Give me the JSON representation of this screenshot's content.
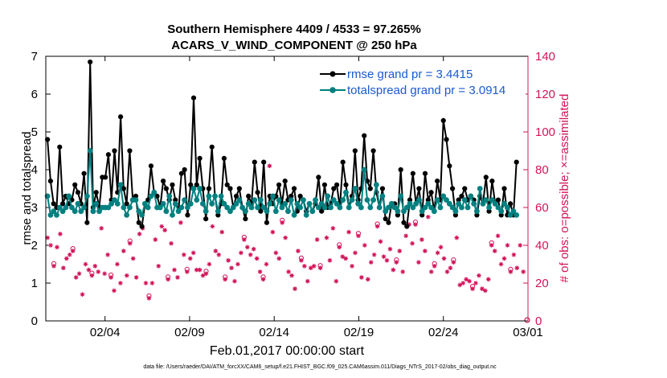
{
  "chart_data": {
    "type": "line",
    "title_line1": "Southern Hemisphere 4409 / 4533 = 97.265%",
    "title_line2": "ACARS_V_WIND_COMPONENT @ 250 hPa",
    "ylabel_left": "rmse and totalspread",
    "ylabel_right": "# of obs: o=possible; ×=assimilated",
    "xlabel": "Feb.01,2017 00:00:00 start",
    "footnote": "data file: /Users/raeder/DAI/ATM_forcXX/CAM6_setup/f.e21.FHIST_BGC.f09_025.CAM6assim.011/Diags_NTrS_2017-02/obs_diag_output.nc",
    "xlim": [
      0.0,
      28.5
    ],
    "ylim_left": [
      0,
      7
    ],
    "ylim_right": [
      0,
      140
    ],
    "yticks_left": [
      "0",
      "1",
      "2",
      "3",
      "4",
      "5",
      "6",
      "7"
    ],
    "yticks_right": [
      "0",
      "20",
      "40",
      "60",
      "80",
      "100",
      "120",
      "140"
    ],
    "xticks": [
      {
        "x": 3.5,
        "label": "02/04"
      },
      {
        "x": 8.5,
        "label": "02/09"
      },
      {
        "x": 13.5,
        "label": "02/14"
      },
      {
        "x": 18.5,
        "label": "02/19"
      },
      {
        "x": 23.5,
        "label": "02/24"
      },
      {
        "x": 28.5,
        "label": "03/01"
      }
    ],
    "colors": {
      "rmse": "#000000",
      "spread": "#008080",
      "obs": "#d1145a",
      "legend_text": "#1a5ad0"
    },
    "series": [
      {
        "name": "rmse grand pr = 3.4415",
        "values": [
          4.8,
          3.7,
          3.1,
          3.0,
          4.6,
          3.1,
          3.3,
          3.1,
          3.2,
          3.6,
          3.4,
          3.1,
          3.9,
          2.6,
          6.85,
          3.0,
          3.4,
          3.0,
          3.8,
          3.8,
          4.4,
          3.2,
          4.5,
          3.4,
          5.4,
          3.5,
          3.1,
          4.5,
          3.2,
          3.3,
          2.6,
          2.5,
          3.1,
          3.2,
          4.1,
          3.4,
          3.3,
          3.0,
          3.7,
          3.5,
          3.2,
          3.6,
          3.2,
          2.9,
          3.9,
          4.0,
          2.8,
          3.6,
          5.9,
          3.6,
          4.3,
          3.5,
          2.7,
          3.5,
          4.6,
          3.3,
          2.8,
          3.1,
          4.3,
          3.6,
          3.5,
          3.0,
          3.3,
          3.5,
          3.0,
          2.7,
          3.3,
          3.1,
          4.2,
          3.4,
          2.9,
          4.2,
          2.6,
          3.3,
          3.1,
          3.3,
          3.6,
          3.1,
          3.7,
          3.2,
          3.3,
          3.5,
          2.9,
          3.3,
          3.2,
          2.9,
          3.1,
          2.9,
          3.1,
          3.8,
          2.9,
          3.6,
          3.0,
          3.1,
          3.5,
          3.6,
          3.0,
          4.2,
          3.6,
          3.0,
          3.3,
          4.5,
          3.2,
          3.5,
          4.9,
          3.7,
          3.5,
          4.5,
          3.4,
          3.0,
          3.5,
          2.7,
          2.6,
          3.1,
          3.1,
          2.8,
          4.0,
          2.6,
          2.5,
          3.2,
          3.9,
          3.1,
          3.5,
          2.8,
          3.9,
          3.2,
          3.4,
          2.9,
          3.7,
          3.2,
          5.3,
          4.8,
          4.1,
          3.5,
          2.8,
          3.2,
          3.3,
          3.5,
          3.2,
          3.3,
          3.2,
          2.8,
          3.3,
          3.1,
          3.8,
          2.9,
          3.7,
          3.1,
          3.2,
          2.8,
          3.5,
          2.8,
          3.1,
          2.8,
          4.2
        ]
      },
      {
        "name": "totalspread grand pr = 3.0914",
        "values": [
          3.3,
          2.8,
          2.9,
          2.8,
          3.0,
          2.9,
          3.0,
          3.3,
          3.0,
          2.9,
          3.1,
          2.9,
          3.0,
          3.3,
          4.5,
          2.9,
          3.1,
          2.9,
          3.0,
          3.0,
          3.0,
          3.1,
          3.2,
          3.1,
          3.6,
          3.0,
          2.8,
          3.0,
          3.2,
          3.2,
          2.9,
          2.8,
          3.1,
          3.0,
          3.3,
          3.4,
          3.0,
          3.0,
          3.1,
          2.9,
          3.3,
          2.8,
          3.1,
          2.9,
          3.0,
          3.2,
          3.0,
          3.1,
          3.5,
          3.2,
          3.5,
          3.1,
          2.9,
          3.3,
          3.1,
          3.3,
          2.9,
          3.3,
          3.1,
          3.0,
          2.9,
          3.0,
          3.1,
          3.2,
          3.0,
          2.9,
          3.1,
          3.0,
          3.2,
          3.0,
          3.2,
          3.0,
          2.9,
          3.1,
          3.3,
          2.9,
          3.2,
          3.0,
          3.1,
          2.9,
          3.2,
          2.8,
          3.1,
          3.0,
          3.2,
          2.8,
          3.1,
          2.9,
          3.2,
          3.0,
          3.1,
          3.0,
          3.3,
          3.0,
          3.2,
          3.1,
          3.0,
          3.2,
          3.4,
          3.0,
          3.2,
          3.5,
          3.1,
          3.0,
          4.0,
          3.2,
          3.0,
          3.2,
          3.6,
          3.0,
          3.3,
          2.9,
          3.0,
          3.1,
          3.0,
          2.9,
          3.3,
          2.9,
          3.0,
          3.1,
          3.0,
          3.1,
          3.2,
          2.9,
          3.0,
          3.1,
          3.0,
          2.9,
          3.2,
          3.0,
          3.3,
          3.2,
          3.1,
          3.0,
          2.9,
          3.1,
          3.0,
          3.2,
          3.0,
          3.3,
          3.1,
          2.9,
          3.5,
          3.1,
          3.2,
          3.0,
          3.2,
          3.1,
          3.0,
          2.9,
          3.1,
          3.0,
          2.8,
          2.9,
          2.8
        ]
      }
    ],
    "obs_possible": [
      44,
      40,
      29,
      39,
      46,
      28,
      33,
      35,
      37,
      23,
      25,
      14,
      30,
      27,
      24,
      29,
      26,
      49,
      25,
      35,
      23,
      16,
      30,
      20,
      37,
      24,
      41,
      33,
      23,
      46,
      49,
      20,
      12,
      20,
      43,
      29,
      50,
      48,
      22,
      41,
      27,
      23,
      52,
      35,
      26,
      33,
      36,
      27,
      27,
      24,
      25,
      30,
      50,
      37,
      35,
      47,
      22,
      32,
      28,
      21,
      30,
      36,
      43,
      39,
      35,
      38,
      33,
      26,
      22,
      30,
      82,
      47,
      36,
      33,
      52,
      44,
      26,
      24,
      17,
      37,
      32,
      29,
      21,
      28,
      29,
      43,
      28,
      61,
      44,
      32,
      49,
      21,
      39,
      34,
      33,
      47,
      29,
      36,
      45,
      23,
      40,
      22,
      31,
      35,
      50,
      42,
      34,
      32,
      38,
      27,
      31,
      37,
      26,
      45,
      51,
      41,
      51,
      31,
      43,
      37,
      55,
      26,
      29,
      36,
      39,
      33,
      26,
      28,
      31,
      44,
      19,
      20,
      22,
      21,
      17,
      20,
      24,
      17,
      16,
      22,
      40,
      37,
      45,
      30,
      33,
      40,
      26,
      35,
      28,
      40,
      26
    ]
  }
}
